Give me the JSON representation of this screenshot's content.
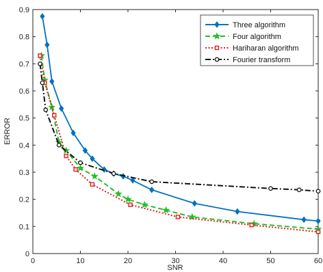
{
  "chart_data": {
    "type": "line",
    "xlabel": "SNR",
    "ylabel": "ERROR",
    "xlim": [
      0,
      60
    ],
    "ylim": [
      0,
      0.9
    ],
    "xticks": [
      0,
      10,
      20,
      30,
      40,
      50,
      60
    ],
    "yticks": [
      0,
      0.1,
      0.2,
      0.3,
      0.4,
      0.5,
      0.6,
      0.7,
      0.8,
      0.9
    ],
    "grid": false,
    "legend_position": "top-right",
    "series": [
      {
        "name": "Three algorithm",
        "color": "#0072BD",
        "line_style": "solid",
        "marker": "diamond",
        "x": [
          2,
          3,
          4,
          6,
          8.5,
          11,
          12.5,
          15,
          17,
          19,
          21,
          25,
          34,
          43,
          57,
          60
        ],
        "y": [
          0.875,
          0.77,
          0.635,
          0.535,
          0.445,
          0.38,
          0.35,
          0.31,
          0.295,
          0.285,
          0.27,
          0.235,
          0.185,
          0.155,
          0.125,
          0.12
        ]
      },
      {
        "name": "Four algorithm",
        "color": "#22C02A",
        "line_style": "dashed",
        "marker": "star",
        "x": [
          1.8,
          2.5,
          4,
          5.5,
          7,
          10,
          13,
          18,
          20,
          23.5,
          28,
          33.5,
          46.5,
          60
        ],
        "y": [
          0.73,
          0.64,
          0.54,
          0.41,
          0.38,
          0.315,
          0.285,
          0.22,
          0.2,
          0.18,
          0.16,
          0.135,
          0.11,
          0.09
        ]
      },
      {
        "name": "Hariharan algorithm",
        "color": "#E41A1C",
        "line_style": "dotted",
        "marker": "square",
        "x": [
          1.5,
          2.5,
          4.5,
          7,
          9,
          12.5,
          20.5,
          30.5,
          46,
          60
        ],
        "y": [
          0.73,
          0.63,
          0.51,
          0.36,
          0.31,
          0.255,
          0.18,
          0.135,
          0.105,
          0.08
        ]
      },
      {
        "name": "Fourier transform",
        "color": "#111111",
        "line_style": "dashdot",
        "marker": "circle",
        "x": [
          1.5,
          2,
          2.7,
          5.5,
          10,
          17,
          25,
          50,
          56,
          60
        ],
        "y": [
          0.7,
          0.63,
          0.53,
          0.4,
          0.335,
          0.295,
          0.265,
          0.24,
          0.235,
          0.23
        ]
      }
    ]
  }
}
